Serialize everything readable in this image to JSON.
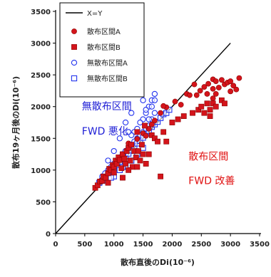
{
  "chart_data": {
    "type": "scatter",
    "xlabel": "散布直後のDi(10⁻⁶)",
    "ylabel": "散布19ヶ月後のDi(10⁻⁶)",
    "xlim": [
      0,
      3500
    ],
    "ylim": [
      0,
      3500
    ],
    "xticks": [
      0,
      500,
      1000,
      1500,
      2000,
      2500,
      3000,
      3500
    ],
    "yticks": [
      0,
      500,
      1000,
      1500,
      2000,
      2500,
      3000,
      3500
    ],
    "grid": false,
    "legend_position": "top-left",
    "reference_line": {
      "name": "X=Y",
      "color": "#000000"
    },
    "annotations": [
      {
        "text": "無散布区間",
        "color": "#1f1fd6",
        "x": 450,
        "y": 1950
      },
      {
        "text": "FWD 悪化",
        "color": "#1f1fd6",
        "x": 450,
        "y": 1560
      },
      {
        "text": "散布区間",
        "color": "#e01010",
        "x": 2280,
        "y": 1160
      },
      {
        "text": "FWD 改善",
        "color": "#e01010",
        "x": 2280,
        "y": 780
      }
    ],
    "series": [
      {
        "name": "散布区間A",
        "marker": "filled-circle",
        "color": "#d4141b",
        "points": [
          [
            1400,
            1490
          ],
          [
            1500,
            1580
          ],
          [
            1600,
            1650
          ],
          [
            1700,
            1780
          ],
          [
            1800,
            1900
          ],
          [
            1900,
            1990
          ],
          [
            2050,
            2080
          ],
          [
            2150,
            2030
          ],
          [
            2250,
            2200
          ],
          [
            2300,
            2180
          ],
          [
            2380,
            2350
          ],
          [
            2420,
            2180
          ],
          [
            2480,
            2250
          ],
          [
            2550,
            2310
          ],
          [
            2600,
            2200
          ],
          [
            2620,
            2360
          ],
          [
            2700,
            2280
          ],
          [
            2700,
            2430
          ],
          [
            2750,
            2400
          ],
          [
            2800,
            2300
          ],
          [
            2850,
            2420
          ],
          [
            2900,
            2350
          ],
          [
            2950,
            2380
          ],
          [
            3000,
            2240
          ],
          [
            3000,
            2400
          ],
          [
            3050,
            2330
          ],
          [
            3100,
            2270
          ],
          [
            3150,
            2450
          ],
          [
            2750,
            2200
          ],
          [
            2700,
            2130
          ],
          [
            1850,
            2010
          ],
          [
            1650,
            1720
          ],
          [
            1550,
            1540
          ],
          [
            1250,
            1420
          ]
        ]
      },
      {
        "name": "散布区間B",
        "marker": "filled-square",
        "color": "#d4141b",
        "points": [
          [
            680,
            720
          ],
          [
            720,
            760
          ],
          [
            760,
            820
          ],
          [
            800,
            830
          ],
          [
            820,
            900
          ],
          [
            860,
            880
          ],
          [
            900,
            950
          ],
          [
            920,
            1020
          ],
          [
            950,
            1000
          ],
          [
            980,
            1080
          ],
          [
            1000,
            1050
          ],
          [
            1030,
            1150
          ],
          [
            1050,
            1100
          ],
          [
            1080,
            1200
          ],
          [
            1100,
            1160
          ],
          [
            1130,
            1030
          ],
          [
            1150,
            1250
          ],
          [
            1180,
            1180
          ],
          [
            1200,
            1100
          ],
          [
            1220,
            1300
          ],
          [
            1250,
            1350
          ],
          [
            1280,
            1150
          ],
          [
            1300,
            1400
          ],
          [
            1320,
            1050
          ],
          [
            1350,
            1300
          ],
          [
            1380,
            1200
          ],
          [
            1400,
            1600
          ],
          [
            1420,
            1300
          ],
          [
            1450,
            1150
          ],
          [
            1480,
            1400
          ],
          [
            1500,
            1250
          ],
          [
            1530,
            1700
          ],
          [
            1550,
            1100
          ],
          [
            1600,
            1250
          ],
          [
            1650,
            1550
          ],
          [
            1700,
            1500
          ],
          [
            1750,
            1450
          ],
          [
            1800,
            900
          ],
          [
            1850,
            1600
          ],
          [
            1900,
            1450
          ],
          [
            2000,
            1750
          ],
          [
            2100,
            1800
          ],
          [
            2200,
            1850
          ],
          [
            2350,
            1900
          ],
          [
            2450,
            1950
          ],
          [
            2500,
            2000
          ],
          [
            2550,
            1900
          ],
          [
            2600,
            2050
          ],
          [
            2650,
            1950
          ],
          [
            2700,
            2050
          ],
          [
            2750,
            2000
          ],
          [
            2850,
            2100
          ],
          [
            2900,
            2050
          ],
          [
            2650,
            1850
          ],
          [
            1150,
            880
          ],
          [
            1000,
            960
          ],
          [
            900,
            800
          ],
          [
            1400,
            1050
          ],
          [
            1250,
            1000
          ]
        ]
      },
      {
        "name": "無散布区間A",
        "marker": "open-circle",
        "color": "#2233ee",
        "points": [
          [
            800,
            900
          ],
          [
            850,
            950
          ],
          [
            900,
            1000
          ],
          [
            950,
            1050
          ],
          [
            1000,
            1100
          ],
          [
            1050,
            1150
          ],
          [
            1100,
            1200
          ],
          [
            1150,
            1250
          ],
          [
            1200,
            1300
          ],
          [
            1250,
            1350
          ],
          [
            1300,
            1400
          ],
          [
            1350,
            1450
          ],
          [
            1400,
            1500
          ],
          [
            1450,
            1550
          ],
          [
            1500,
            1600
          ],
          [
            1550,
            1650
          ],
          [
            1600,
            1700
          ],
          [
            1650,
            1800
          ],
          [
            1700,
            1900
          ],
          [
            1500,
            1800
          ],
          [
            1550,
            1900
          ],
          [
            1600,
            2000
          ],
          [
            1650,
            2100
          ],
          [
            1700,
            2200
          ],
          [
            1450,
            1750
          ],
          [
            1400,
            1650
          ],
          [
            1350,
            1600
          ],
          [
            1300,
            1550
          ],
          [
            1550,
            1950
          ],
          [
            1650,
            2000
          ],
          [
            1600,
            1800
          ],
          [
            1500,
            2100
          ],
          [
            1300,
            1900
          ],
          [
            1200,
            1750
          ],
          [
            1100,
            1500
          ],
          [
            1000,
            1300
          ],
          [
            900,
            1150
          ],
          [
            1250,
            1600
          ],
          [
            1700,
            2100
          ]
        ]
      },
      {
        "name": "無散布区間B",
        "marker": "open-square",
        "color": "#2233ee",
        "points": [
          [
            750,
            800
          ],
          [
            800,
            830
          ],
          [
            850,
            880
          ],
          [
            900,
            950
          ],
          [
            950,
            980
          ],
          [
            1000,
            1030
          ],
          [
            1050,
            1080
          ],
          [
            1100,
            1120
          ],
          [
            1150,
            1180
          ],
          [
            1200,
            1220
          ],
          [
            1250,
            1260
          ],
          [
            1300,
            1310
          ],
          [
            1350,
            1370
          ],
          [
            1400,
            1420
          ],
          [
            1450,
            1460
          ],
          [
            1500,
            1510
          ],
          [
            1550,
            1570
          ],
          [
            1600,
            1620
          ],
          [
            1650,
            1680
          ],
          [
            1700,
            1720
          ],
          [
            1750,
            1760
          ],
          [
            1800,
            1820
          ],
          [
            1850,
            1880
          ],
          [
            1900,
            1900
          ],
          [
            1950,
            1950
          ],
          [
            1100,
            1000
          ],
          [
            1200,
            1050
          ],
          [
            1300,
            1150
          ],
          [
            1400,
            1250
          ],
          [
            1500,
            1350
          ],
          [
            1000,
            900
          ],
          [
            950,
            880
          ],
          [
            1150,
            1050
          ]
        ]
      }
    ]
  }
}
